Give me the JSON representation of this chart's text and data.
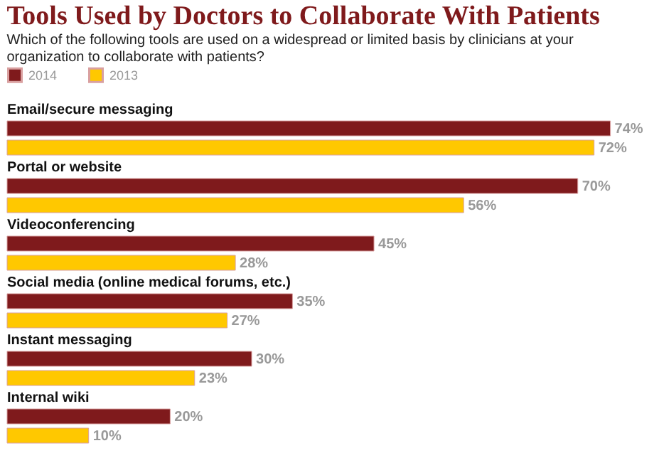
{
  "chart_data": {
    "type": "bar",
    "orientation": "horizontal",
    "title": "Tools Used by Doctors to Collaborate With Patients",
    "subtitle": "Which of the following tools are used on a widespread or limited basis by clinicians at your organization to collaborate with patients?",
    "categories": [
      "Email/secure messaging",
      "Portal or website",
      "Videoconferencing",
      "Social media (online medical forums, etc.)",
      "Instant messaging",
      "Internal wiki"
    ],
    "series": [
      {
        "name": "2014",
        "color": "#7f1a1c",
        "values": [
          74,
          70,
          45,
          35,
          30,
          20
        ],
        "value_labels": [
          "74%",
          "70%",
          "45%",
          "35%",
          "30%",
          "20%"
        ]
      },
      {
        "name": "2013",
        "color": "#ffc800",
        "values": [
          72,
          56,
          28,
          27,
          23,
          10
        ],
        "value_labels": [
          "72%",
          "56%",
          "28%",
          "27%",
          "23%",
          "10%"
        ]
      }
    ],
    "legend": "top left",
    "grid": false
  }
}
